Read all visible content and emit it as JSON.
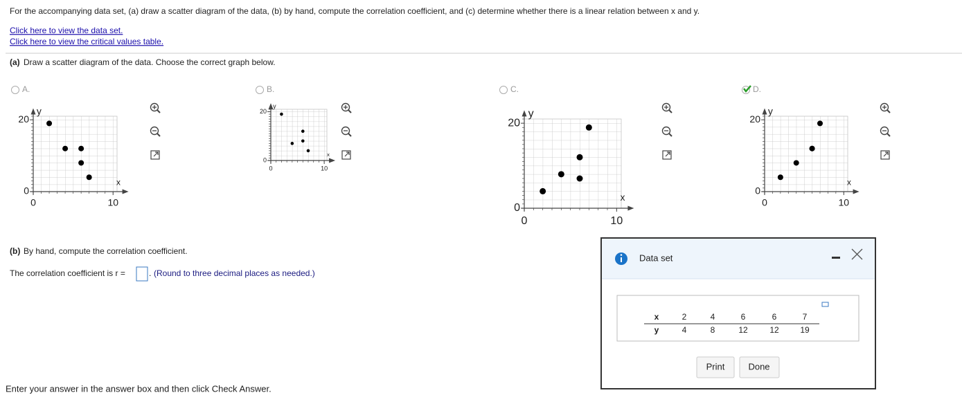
{
  "question": "For the accompanying data set, (a) draw a scatter diagram of the data, (b) by hand, compute the correlation coefficient, and (c) determine whether there is a linear relation between x and y.",
  "links": [
    "Click here to view the data set.",
    "Click here to view the critical values table."
  ],
  "part_a": {
    "label": "(a)",
    "text": "Draw a scatter diagram of the data. Choose the correct graph below."
  },
  "options": [
    {
      "letter": "A.",
      "selected": false,
      "x_label": "x",
      "y_label": "y",
      "xlim": [
        0,
        10.5
      ],
      "ylim": [
        0,
        21
      ],
      "xticks": [
        0,
        10
      ],
      "yticks": [
        0,
        20
      ],
      "points": {
        "x": [
          2,
          4,
          6,
          6,
          7
        ],
        "y": [
          19,
          12,
          12,
          8,
          4
        ]
      }
    },
    {
      "letter": "B.",
      "selected": false,
      "x_label": "x",
      "y_label": "y",
      "xlim": [
        0,
        10.5
      ],
      "ylim": [
        0,
        21
      ],
      "xticks": [
        0,
        10
      ],
      "yticks": [
        0,
        20
      ],
      "points": {
        "x": [
          2,
          4,
          6,
          6,
          7
        ],
        "y": [
          19,
          7,
          12,
          8,
          4
        ]
      }
    },
    {
      "letter": "C.",
      "selected": false,
      "x_label": "x",
      "y_label": "y",
      "xlim": [
        0,
        10.5
      ],
      "ylim": [
        0,
        21
      ],
      "xticks": [
        0,
        10
      ],
      "yticks": [
        0,
        20
      ],
      "points": {
        "x": [
          2,
          4,
          6,
          6,
          7
        ],
        "y": [
          4,
          8,
          12,
          7,
          19
        ]
      }
    },
    {
      "letter": "D.",
      "selected": true,
      "x_label": "x",
      "y_label": "y",
      "xlim": [
        0,
        10.5
      ],
      "ylim": [
        0,
        21
      ],
      "xticks": [
        0,
        10
      ],
      "yticks": [
        0,
        20
      ],
      "points": {
        "x": [
          2,
          4,
          6,
          6,
          7
        ],
        "y": [
          4,
          8,
          12,
          12,
          19
        ]
      }
    }
  ],
  "part_b": {
    "label": "(b)",
    "text": "By hand, compute the correlation coefficient."
  },
  "answer": {
    "prompt": "The correlation coefficient is r =",
    "suffix": ".",
    "hint": "(Round to three decimal places as needed.)"
  },
  "footer": "Enter your answer in the answer box and then click Check Answer.",
  "dialog": {
    "title": "Data set",
    "table": {
      "rows": [
        [
          "x",
          2,
          4,
          6,
          6,
          7
        ],
        [
          "y",
          4,
          8,
          12,
          12,
          19
        ]
      ]
    },
    "buttons": [
      "Print",
      "Done"
    ]
  }
}
